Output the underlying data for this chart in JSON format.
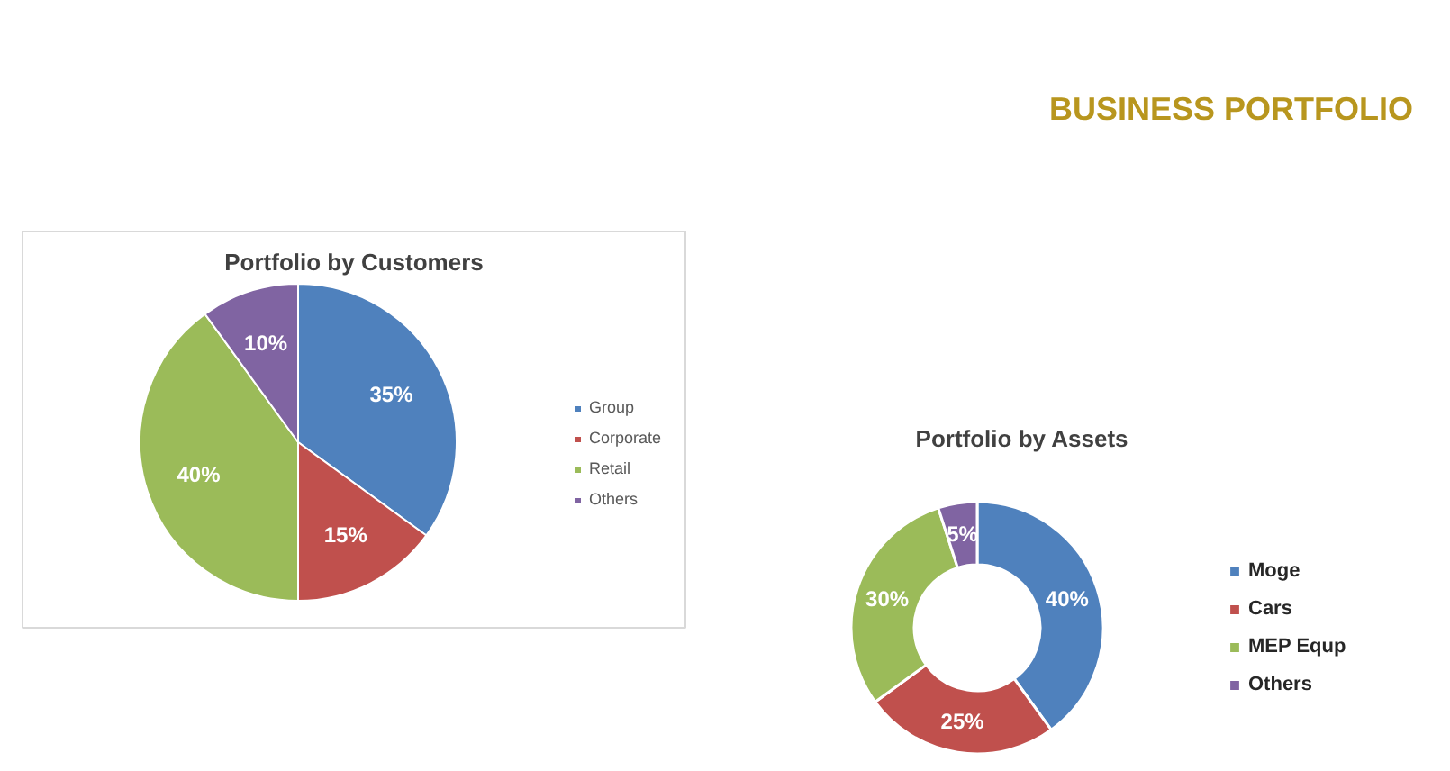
{
  "chart_data": [
    {
      "type": "pie",
      "title": "Portfolio by Customers",
      "categories": [
        "Group",
        "Corporate",
        "Retail",
        "Others"
      ],
      "values": [
        35,
        15,
        40,
        10
      ],
      "value_labels": [
        "35%",
        "15%",
        "40%",
        "10%"
      ],
      "colors": [
        "#4f81bd",
        "#c0504d",
        "#9bbb59",
        "#8064a2"
      ],
      "legend": "right"
    },
    {
      "type": "donut",
      "title": "Portfolio by Assets",
      "categories": [
        "Moge",
        "Cars",
        "MEP Equp",
        "Others"
      ],
      "values": [
        40,
        25,
        30,
        5
      ],
      "value_labels": [
        "40%",
        "25%",
        "30%",
        "5%"
      ],
      "colors": [
        "#4f81bd",
        "#c0504d",
        "#9bbb59",
        "#8064a2"
      ],
      "legend": "right",
      "annotations": [
        "BUSINESS PORTFOLIO"
      ]
    }
  ]
}
